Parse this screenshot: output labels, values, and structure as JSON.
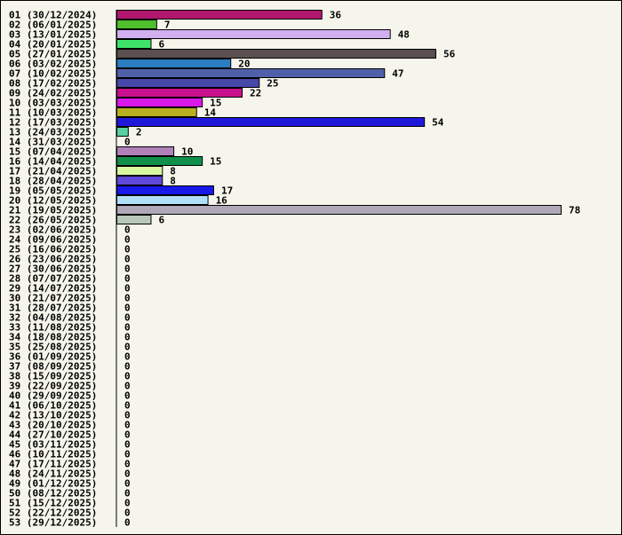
{
  "chart_data": {
    "type": "bar",
    "orientation": "horizontal",
    "title": "",
    "xlabel": "",
    "ylabel": "",
    "grid": false,
    "legend": "none",
    "xlim": [
      0,
      78
    ],
    "categories": [
      "01 (30/12/2024)",
      "02 (06/01/2025)",
      "03 (13/01/2025)",
      "04 (20/01/2025)",
      "05 (27/01/2025)",
      "06 (03/02/2025)",
      "07 (10/02/2025)",
      "08 (17/02/2025)",
      "09 (24/02/2025)",
      "10 (03/03/2025)",
      "11 (10/03/2025)",
      "12 (17/03/2025)",
      "13 (24/03/2025)",
      "14 (31/03/2025)",
      "15 (07/04/2025)",
      "16 (14/04/2025)",
      "17 (21/04/2025)",
      "18 (28/04/2025)",
      "19 (05/05/2025)",
      "20 (12/05/2025)",
      "21 (19/05/2025)",
      "22 (26/05/2025)",
      "23 (02/06/2025)",
      "24 (09/06/2025)",
      "25 (16/06/2025)",
      "26 (23/06/2025)",
      "27 (30/06/2025)",
      "28 (07/07/2025)",
      "29 (14/07/2025)",
      "30 (21/07/2025)",
      "31 (28/07/2025)",
      "32 (04/08/2025)",
      "33 (11/08/2025)",
      "34 (18/08/2025)",
      "35 (25/08/2025)",
      "36 (01/09/2025)",
      "37 (08/09/2025)",
      "38 (15/09/2025)",
      "39 (22/09/2025)",
      "40 (29/09/2025)",
      "41 (06/10/2025)",
      "42 (13/10/2025)",
      "43 (20/10/2025)",
      "44 (27/10/2025)",
      "45 (03/11/2025)",
      "46 (10/11/2025)",
      "47 (17/11/2025)",
      "48 (24/11/2025)",
      "49 (01/12/2025)",
      "50 (08/12/2025)",
      "51 (15/12/2025)",
      "52 (22/12/2025)",
      "53 (29/12/2025)"
    ],
    "values": [
      36,
      7,
      48,
      6,
      56,
      20,
      47,
      25,
      22,
      15,
      14,
      54,
      2,
      0,
      10,
      15,
      8,
      8,
      17,
      16,
      78,
      6,
      0,
      0,
      0,
      0,
      0,
      0,
      0,
      0,
      0,
      0,
      0,
      0,
      0,
      0,
      0,
      0,
      0,
      0,
      0,
      0,
      0,
      0,
      0,
      0,
      0,
      0,
      0,
      0,
      0,
      0,
      0
    ],
    "colors": [
      "#b0186e",
      "#4fbf2e",
      "#d0b0f0",
      "#3ee46a",
      "#5a5050",
      "#2a7ec0",
      "#5060a8",
      "#4848a8",
      "#c8108c",
      "#d818e8",
      "#b8b020",
      "#2018d8",
      "#58d0a0",
      "#ffffff",
      "#b080b8",
      "#10904a",
      "#d8f8a0",
      "#6048d8",
      "#1818e8",
      "#b0e0f8",
      "#b0a8b8",
      "#b8c8b8"
    ]
  }
}
